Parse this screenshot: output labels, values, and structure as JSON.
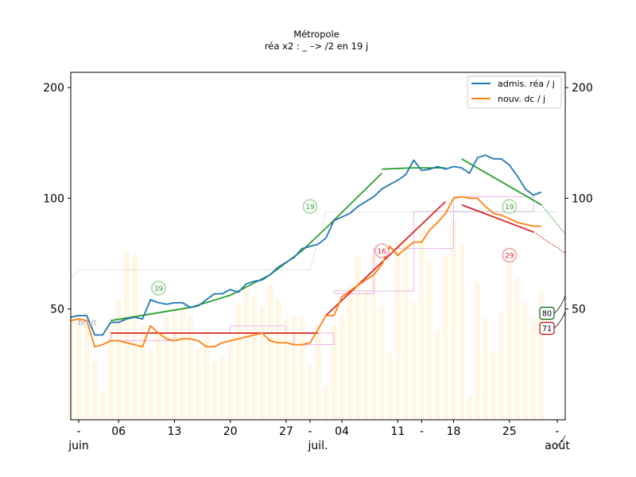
{
  "chart_data": {
    "type": "line",
    "title": "Métropole",
    "subtitle": "réa x2 : _ –> /2 en 19 j",
    "x_start": "2021-05-31",
    "x_end": "2021-08-01",
    "yscale": "log",
    "ylim": [
      25,
      220
    ],
    "y_ticks": [
      50,
      100,
      200
    ],
    "y_tick_labels": [
      "50",
      "100",
      "200"
    ],
    "x_day_ticks": [
      {
        "date": "2021-06-01",
        "label": "-"
      },
      {
        "date": "2021-06-06",
        "label": "06"
      },
      {
        "date": "2021-06-13",
        "label": "13"
      },
      {
        "date": "2021-06-20",
        "label": "20"
      },
      {
        "date": "2021-06-27",
        "label": "27"
      },
      {
        "date": "2021-06-30",
        "label": "-"
      },
      {
        "date": "2021-07-04",
        "label": "04"
      },
      {
        "date": "2021-07-11",
        "label": "11"
      },
      {
        "date": "2021-07-14",
        "label": "-"
      },
      {
        "date": "2021-07-18",
        "label": "18"
      },
      {
        "date": "2021-07-25",
        "label": "25"
      },
      {
        "date": "2021-07-31",
        "label": "-"
      }
    ],
    "x_month_labels": [
      {
        "date": "2021-06-01",
        "label": "juin"
      },
      {
        "date": "2021-07-01",
        "label": "juil."
      },
      {
        "date": "2021-07-31",
        "label": "août"
      }
    ],
    "legend": {
      "position": "top-right"
    },
    "noise_label": "bruit",
    "series": [
      {
        "name": "admis. réa / j",
        "color": "#1f77b4",
        "x": [
          "2021-05-31",
          "2021-06-01",
          "2021-06-02",
          "2021-06-03",
          "2021-06-04",
          "2021-06-05",
          "2021-06-06",
          "2021-06-07",
          "2021-06-08",
          "2021-06-09",
          "2021-06-10",
          "2021-06-11",
          "2021-06-12",
          "2021-06-13",
          "2021-06-14",
          "2021-06-15",
          "2021-06-16",
          "2021-06-17",
          "2021-06-18",
          "2021-06-19",
          "2021-06-20",
          "2021-06-21",
          "2021-06-22",
          "2021-06-23",
          "2021-06-24",
          "2021-06-25",
          "2021-06-26",
          "2021-06-27",
          "2021-06-28",
          "2021-06-29",
          "2021-06-30",
          "2021-07-01",
          "2021-07-02",
          "2021-07-03",
          "2021-07-04",
          "2021-07-05",
          "2021-07-06",
          "2021-07-07",
          "2021-07-08",
          "2021-07-09",
          "2021-07-10",
          "2021-07-11",
          "2021-07-12",
          "2021-07-13",
          "2021-07-14",
          "2021-07-15",
          "2021-07-16",
          "2021-07-17",
          "2021-07-18",
          "2021-07-19",
          "2021-07-20",
          "2021-07-21",
          "2021-07-22",
          "2021-07-23",
          "2021-07-24",
          "2021-07-25",
          "2021-07-26",
          "2021-07-27",
          "2021-07-28",
          "2021-07-29"
        ],
        "values": [
          47.5,
          48,
          48,
          42.5,
          42.5,
          46,
          46,
          47,
          47.5,
          47,
          53,
          52,
          51.5,
          52,
          52,
          50.5,
          51,
          53,
          55,
          55,
          56.5,
          55.5,
          58.5,
          59.5,
          60,
          62,
          65,
          67,
          69,
          73,
          74,
          75,
          78,
          87,
          89,
          91,
          95,
          98,
          101,
          106,
          109,
          112,
          116,
          127,
          119,
          120,
          122,
          120,
          122,
          121,
          117,
          129,
          131,
          128,
          128,
          123,
          115,
          106,
          102,
          104
        ]
      },
      {
        "name": "nouv. dc / j",
        "color": "#ff7f0e",
        "x": [
          "2021-05-31",
          "2021-06-01",
          "2021-06-02",
          "2021-06-03",
          "2021-06-04",
          "2021-06-05",
          "2021-06-06",
          "2021-06-07",
          "2021-06-08",
          "2021-06-09",
          "2021-06-10",
          "2021-06-11",
          "2021-06-12",
          "2021-06-13",
          "2021-06-14",
          "2021-06-15",
          "2021-06-16",
          "2021-06-17",
          "2021-06-18",
          "2021-06-19",
          "2021-06-20",
          "2021-06-21",
          "2021-06-22",
          "2021-06-23",
          "2021-06-24",
          "2021-06-25",
          "2021-06-26",
          "2021-06-27",
          "2021-06-28",
          "2021-06-29",
          "2021-06-30",
          "2021-07-01",
          "2021-07-02",
          "2021-07-03",
          "2021-07-04",
          "2021-07-05",
          "2021-07-06",
          "2021-07-07",
          "2021-07-08",
          "2021-07-09",
          "2021-07-10",
          "2021-07-11",
          "2021-07-12",
          "2021-07-13",
          "2021-07-14",
          "2021-07-15",
          "2021-07-16",
          "2021-07-17",
          "2021-07-18",
          "2021-07-19",
          "2021-07-20",
          "2021-07-21",
          "2021-07-22",
          "2021-07-23",
          "2021-07-24",
          "2021-07-25",
          "2021-07-26",
          "2021-07-27",
          "2021-07-28",
          "2021-07-29"
        ],
        "values": [
          46.5,
          47,
          46.5,
          39.5,
          40,
          41,
          41,
          40.5,
          40,
          39.5,
          45,
          43,
          41.5,
          41,
          41.5,
          41.5,
          41,
          39.5,
          39.5,
          40.5,
          41,
          41.5,
          42,
          42.5,
          43,
          41,
          40.5,
          40.5,
          40,
          40,
          40.5,
          44,
          48,
          48,
          54,
          56,
          58,
          60,
          62,
          66,
          74,
          70,
          73,
          76,
          76,
          82,
          86,
          91,
          100,
          101,
          100,
          100,
          95,
          91,
          90,
          88,
          86,
          85,
          84,
          84
        ]
      }
    ],
    "fits": [
      {
        "color": "#2ca02c",
        "x": [
          "2021-06-05",
          "2021-06-15",
          "2021-06-20",
          "2021-06-25",
          "2021-06-29",
          "2021-07-02",
          "2021-07-09"
        ],
        "values": [
          46.5,
          50.5,
          54.5,
          62,
          72,
          83,
          117
        ]
      },
      {
        "color": "#2ca02c",
        "x": [
          "2021-07-09",
          "2021-07-13",
          "2021-07-17"
        ],
        "values": [
          120,
          121,
          121
        ]
      },
      {
        "color": "#2ca02c",
        "x": [
          "2021-07-19",
          "2021-07-29"
        ],
        "values": [
          128,
          96
        ]
      },
      {
        "color": "#d62728",
        "x": [
          "2021-06-05",
          "2021-07-01"
        ],
        "values": [
          43,
          43
        ]
      },
      {
        "color": "#d62728",
        "x": [
          "2021-07-02",
          "2021-07-17"
        ],
        "values": [
          48,
          98
        ]
      },
      {
        "color": "#d62728",
        "x": [
          "2021-07-19",
          "2021-07-28"
        ],
        "values": [
          96,
          81
        ]
      }
    ],
    "badges": [
      {
        "label": "39",
        "color": "#2ca02c",
        "date": "2021-06-11",
        "value": 57
      },
      {
        "label": "19",
        "color": "#2ca02c",
        "date": "2021-06-30",
        "value": 95
      },
      {
        "label": "16",
        "color": "#d62728",
        "date": "2021-07-09",
        "value": 72
      },
      {
        "label": "19",
        "color": "#2ca02c",
        "date": "2021-07-25",
        "value": 95
      },
      {
        "label": "29",
        "color": "#d62728",
        "date": "2021-07-25",
        "value": 70
      }
    ],
    "end_labels": [
      {
        "label": "80",
        "color": "#006400"
      },
      {
        "label": "71",
        "color": "#cc0000"
      }
    ],
    "daily_bars": [
      47,
      48,
      49,
      36,
      30,
      44,
      53,
      72,
      70,
      45,
      39,
      44,
      48,
      50,
      50,
      48,
      39,
      44,
      36,
      37,
      41,
      52,
      57,
      54,
      51,
      59,
      53,
      47,
      48,
      48,
      35,
      45,
      31,
      45,
      48,
      58,
      70,
      56,
      71,
      51,
      38,
      76,
      77,
      52,
      83,
      67,
      44,
      70,
      87,
      75,
      29,
      59,
      47,
      38,
      49,
      66,
      61,
      52,
      47,
      56
    ]
  }
}
